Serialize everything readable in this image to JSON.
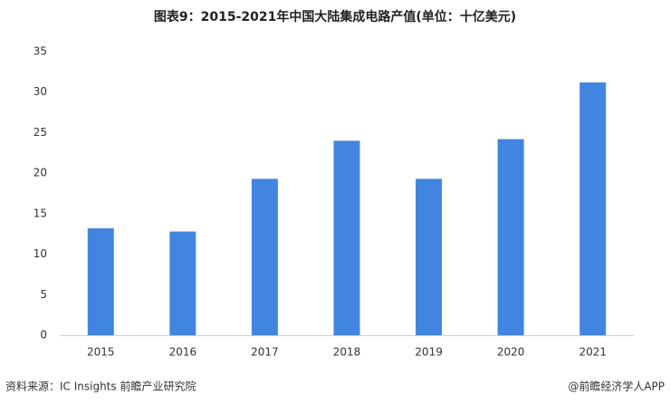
{
  "chart_data": {
    "type": "bar",
    "title": "图表9：2015-2021年中国大陆集成电路产值(单位：十亿美元)",
    "categories": [
      "2015",
      "2016",
      "2017",
      "2018",
      "2019",
      "2020",
      "2021"
    ],
    "values": [
      13.2,
      12.8,
      19.3,
      24.0,
      19.3,
      24.2,
      31.2
    ],
    "color": "#4285e0",
    "ylim": [
      0,
      35
    ],
    "yticks": [
      0,
      5,
      10,
      15,
      20,
      25,
      30,
      35
    ],
    "grid": false,
    "source": "资料来源：IC Insights 前瞻产业研究院",
    "credit": "@前瞻经济学人APP"
  }
}
